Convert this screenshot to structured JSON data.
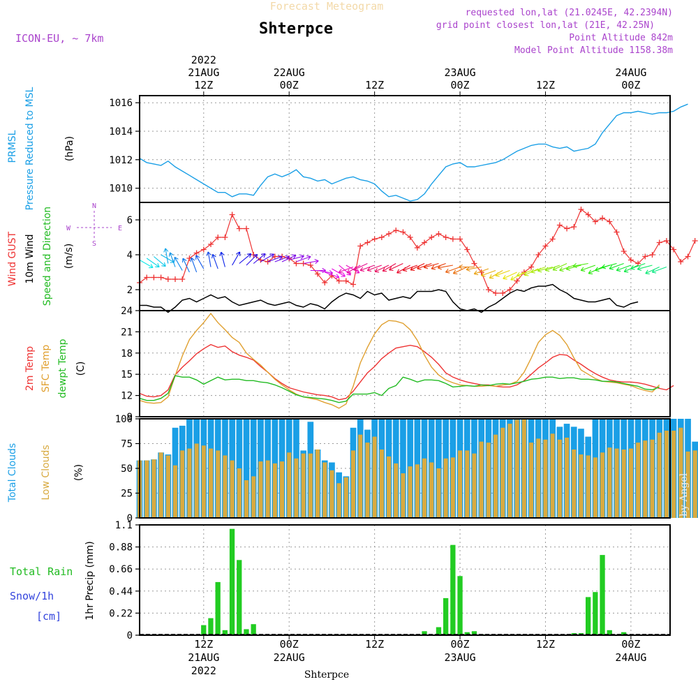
{
  "header": {
    "title_top": "Forecast Meteogram",
    "station": "Shterpce",
    "model": "ICON-EU, ~ 7km",
    "requested": "requested lon,lat (21.0245E, 42.2394N)",
    "grid_point": "grid point closest lon,lat (21E, 42.25N)",
    "point_alt": "Point Altitude 842m",
    "model_alt": "Model Point Altitude 1158.38m",
    "footer_station": "Shterpce",
    "watermark": "by Angel"
  },
  "time_axis": {
    "top": [
      {
        "h": 12,
        "l1": "2022",
        "l2": "21AUG",
        "l3": "12Z"
      },
      {
        "h": 24,
        "l2": "22AUG",
        "l3": "00Z"
      },
      {
        "h": 36,
        "l3": "12Z"
      },
      {
        "h": 48,
        "l2": "23AUG",
        "l3": "00Z"
      },
      {
        "h": 60,
        "l3": "12Z"
      },
      {
        "h": 72,
        "l2": "24AUG",
        "l3": "00Z"
      }
    ],
    "bottom": [
      {
        "h": 12,
        "l1": "12Z",
        "l2": "21AUG",
        "l3": "2022"
      },
      {
        "h": 24,
        "l1": "00Z",
        "l2": "22AUG"
      },
      {
        "h": 36,
        "l1": "12Z"
      },
      {
        "h": 48,
        "l1": "00Z",
        "l2": "23AUG"
      },
      {
        "h": 60,
        "l1": "12Z"
      },
      {
        "h": 72,
        "l1": "00Z",
        "l2": "24AUG"
      }
    ]
  },
  "panels": {
    "pressure": {
      "labels": [
        {
          "text": "PRMSL",
          "color": "#1a9fe6"
        },
        {
          "text": "Pressure Reduced to MSL",
          "color": "#1a9fe6"
        },
        {
          "text": "(hPa)",
          "color": "#000000"
        }
      ],
      "ticks": [
        "1010",
        "1012",
        "1014",
        "1016"
      ]
    },
    "wind": {
      "labels": [
        {
          "text": "Wind GUST",
          "color": "#ee3333"
        },
        {
          "text": "10m Wind",
          "color": "#000000"
        },
        {
          "text": "Speed and Direction",
          "color": "#22bb22"
        },
        {
          "text": "(m/s)",
          "color": "#000000"
        }
      ],
      "ticks": [
        "2",
        "4",
        "6"
      ],
      "compass": {
        "n": "N",
        "s": "S",
        "w": "W",
        "e": "E"
      }
    },
    "temp": {
      "labels": [
        {
          "text": "2m Temp",
          "color": "#ee3333"
        },
        {
          "text": "SFC Temp",
          "color": "#e0a030"
        },
        {
          "text": "dewpt Temp",
          "color": "#22bb22"
        },
        {
          "text": "(C)",
          "color": "#000000"
        }
      ],
      "ticks": [
        "9",
        "12",
        "15",
        "18",
        "21",
        "24"
      ]
    },
    "clouds": {
      "labels": [
        {
          "text": "Total Clouds",
          "color": "#1a9fe6"
        },
        {
          "text": "Low Clouds",
          "color": "#d8aa40"
        },
        {
          "text": "(%)",
          "color": "#000000"
        }
      ],
      "ticks": [
        "0",
        "25",
        "50",
        "75",
        "100"
      ]
    },
    "precip": {
      "labels": [
        {
          "text": "Total  Rain",
          "color": "#22bb22"
        },
        {
          "text": "Snow/1h",
          "color": "#3344dd"
        },
        {
          "text": "[cm]",
          "color": "#3344dd"
        },
        {
          "text": "1hr Precip (mm)",
          "color": "#000000"
        }
      ],
      "ticks": [
        "0",
        "0.22",
        "0.44",
        "0.66",
        "0.88",
        "1.1"
      ]
    }
  },
  "chart_data": [
    {
      "type": "line",
      "name": "pressure",
      "x_unit": "hours since 2022-08-21 00Z",
      "x_start": 3,
      "x_step": 1,
      "ylim": [
        1009,
        1016.5
      ],
      "series": [
        {
          "name": "PRMSL",
          "color": "#1a9fe6",
          "values": [
            1012.1,
            1011.8,
            1011.7,
            1011.6,
            1011.9,
            1011.5,
            1011.2,
            1010.9,
            1010.6,
            1010.3,
            1010.0,
            1009.7,
            1009.7,
            1009.4,
            1009.6,
            1009.6,
            1009.5,
            1010.2,
            1010.8,
            1011.0,
            1010.8,
            1011.0,
            1011.3,
            1010.8,
            1010.7,
            1010.5,
            1010.6,
            1010.3,
            1010.5,
            1010.7,
            1010.8,
            1010.6,
            1010.5,
            1010.3,
            1009.8,
            1009.4,
            1009.5,
            1009.3,
            1009.1,
            1009.2,
            1009.6,
            1010.3,
            1010.9,
            1011.5,
            1011.7,
            1011.8,
            1011.5,
            1011.5,
            1011.6,
            1011.7,
            1011.8,
            1012.0,
            1012.3,
            1012.6,
            1012.8,
            1013.0,
            1013.1,
            1013.1,
            1012.9,
            1012.8,
            1012.9,
            1012.6,
            1012.7,
            1012.8,
            1013.1,
            1013.9,
            1014.5,
            1015.1,
            1015.3,
            1015.3,
            1015.4,
            1015.3,
            1015.2,
            1015.3,
            1015.3,
            1015.4,
            1015.7,
            1015.9
          ]
        }
      ]
    },
    {
      "type": "line",
      "name": "wind",
      "x_unit": "hours since 2022-08-21 00Z",
      "x_start": 3,
      "x_step": 1,
      "ylim": [
        0.8,
        7
      ],
      "series": [
        {
          "name": "Wind GUST",
          "color": "#ee3333",
          "values": [
            2.4,
            2.7,
            2.7,
            2.7,
            2.6,
            2.6,
            2.6,
            3.8,
            4.1,
            4.3,
            4.6,
            5.0,
            5.0,
            6.3,
            5.5,
            5.5,
            4.0,
            3.7,
            3.6,
            3.9,
            3.9,
            3.8,
            3.5,
            3.5,
            3.4,
            2.9,
            2.4,
            2.8,
            2.5,
            2.5,
            2.3,
            4.5,
            4.7,
            4.9,
            5.0,
            5.2,
            5.4,
            5.3,
            5.0,
            4.4,
            4.7,
            5.0,
            5.2,
            5.0,
            4.9,
            4.9,
            4.3,
            3.5,
            3.0,
            2.0,
            1.8,
            1.8,
            2.0,
            2.5,
            3.0,
            3.3,
            4.0,
            4.5,
            4.9,
            5.7,
            5.5,
            5.6,
            6.6,
            6.3,
            5.9,
            6.1,
            5.9,
            5.3,
            4.2,
            3.7,
            3.5,
            3.9,
            4.0,
            4.7,
            4.8,
            4.3,
            3.6,
            3.9,
            4.8
          ]
        },
        {
          "name": "10m Wind",
          "color": "#000000",
          "values": [
            1.1,
            1.1,
            1.0,
            1.0,
            0.7,
            1.0,
            1.4,
            1.5,
            1.3,
            1.5,
            1.7,
            1.5,
            1.6,
            1.3,
            1.1,
            1.2,
            1.3,
            1.4,
            1.2,
            1.1,
            1.2,
            1.3,
            1.1,
            1.0,
            1.2,
            1.1,
            0.9,
            1.3,
            1.6,
            1.8,
            1.7,
            1.5,
            1.9,
            1.7,
            1.8,
            1.4,
            1.5,
            1.6,
            1.5,
            1.9,
            1.9,
            1.9,
            2.0,
            1.9,
            1.3,
            0.9,
            0.8,
            0.9,
            0.7,
            1.0,
            1.2,
            1.5,
            1.8,
            2.0,
            1.9,
            2.1,
            2.2,
            2.2,
            2.3,
            2.0,
            1.8,
            1.5,
            1.4,
            1.3,
            1.3,
            1.4,
            1.5,
            1.1,
            1.0,
            1.2,
            1.3
          ]
        }
      ]
    },
    {
      "type": "line",
      "name": "temperature",
      "x_unit": "hours since 2022-08-21 00Z",
      "x_start": 3,
      "x_step": 1,
      "ylim": [
        9,
        24
      ],
      "series": [
        {
          "name": "2m Temp",
          "color": "#ee3333",
          "values": [
            12.3,
            11.9,
            11.8,
            12.0,
            12.8,
            14.9,
            16.0,
            16.9,
            17.9,
            18.6,
            19.2,
            18.8,
            19.0,
            18.2,
            17.7,
            17.4,
            17.0,
            16.1,
            15.3,
            14.4,
            13.7,
            13.1,
            12.8,
            12.5,
            12.3,
            12.1,
            12.0,
            11.8,
            11.4,
            11.6,
            12.6,
            13.9,
            15.2,
            16.1,
            17.2,
            18.0,
            18.7,
            18.9,
            19.1,
            18.9,
            18.2,
            17.4,
            16.4,
            15.2,
            14.6,
            14.2,
            13.9,
            13.7,
            13.5,
            13.5,
            13.3,
            13.2,
            13.2,
            13.5,
            14.1,
            15.0,
            15.9,
            16.6,
            17.4,
            17.8,
            17.7,
            17.0,
            16.4,
            15.7,
            15.1,
            14.6,
            14.2,
            14.0,
            13.9,
            13.9,
            13.8,
            13.6,
            13.3,
            13.0,
            12.8,
            13.4
          ]
        },
        {
          "name": "SFC Temp",
          "color": "#e0a030",
          "values": [
            11.3,
            11.0,
            10.9,
            11.0,
            11.8,
            14.8,
            17.6,
            19.9,
            21.2,
            22.3,
            23.6,
            22.3,
            21.3,
            20.2,
            19.5,
            18.0,
            17.1,
            16.3,
            15.3,
            14.3,
            13.5,
            12.8,
            12.2,
            11.8,
            11.6,
            11.4,
            11.0,
            10.7,
            10.2,
            10.8,
            13.3,
            16.6,
            18.8,
            20.7,
            22.0,
            22.6,
            22.5,
            22.2,
            21.3,
            19.8,
            17.7,
            16.0,
            14.9,
            14.2,
            13.8,
            13.5,
            13.4,
            13.3,
            13.3,
            13.4,
            13.3,
            13.5,
            13.6,
            14.0,
            15.3,
            17.3,
            19.5,
            20.6,
            21.2,
            20.5,
            19.2,
            17.3,
            15.6,
            15.0,
            14.4,
            14.0,
            13.9,
            13.8,
            13.6,
            13.4,
            13.0,
            12.7,
            12.5,
            13.5
          ]
        },
        {
          "name": "dewpt Temp",
          "color": "#22bb22",
          "values": [
            11.6,
            11.3,
            11.3,
            11.6,
            12.3,
            14.8,
            14.6,
            14.6,
            14.2,
            13.6,
            14.1,
            14.6,
            14.2,
            14.3,
            14.3,
            14.1,
            14.1,
            13.9,
            13.8,
            13.5,
            13.1,
            12.6,
            12.1,
            11.8,
            11.7,
            11.6,
            11.5,
            11.3,
            11.0,
            11.2,
            12.2,
            12.2,
            12.2,
            12.4,
            12.0,
            13.0,
            13.4,
            14.6,
            14.3,
            13.9,
            14.2,
            14.2,
            14.1,
            13.7,
            13.2,
            13.3,
            13.4,
            13.3,
            13.5,
            13.4,
            13.6,
            13.7,
            13.6,
            13.8,
            14.0,
            14.3,
            14.4,
            14.6,
            14.6,
            14.4,
            14.5,
            14.5,
            14.3,
            14.3,
            14.2,
            14.0,
            14.0,
            13.9,
            13.7,
            13.5,
            13.3,
            12.9,
            12.8,
            13.2
          ]
        }
      ]
    },
    {
      "type": "bar",
      "name": "clouds",
      "x_unit": "hours since 2022-08-21 00Z",
      "x_start": 3,
      "x_step": 1,
      "ylim": [
        0,
        100
      ],
      "series": [
        {
          "name": "Total Clouds",
          "color": "#1a9fe6",
          "values": [
            58,
            58,
            59,
            66,
            64,
            91,
            93,
            100,
            100,
            100,
            100,
            100,
            100,
            100,
            100,
            100,
            100,
            100,
            100,
            100,
            100,
            100,
            100,
            68,
            97,
            69,
            58,
            56,
            46,
            42,
            91,
            100,
            89,
            100,
            100,
            100,
            100,
            100,
            100,
            100,
            100,
            100,
            100,
            100,
            100,
            100,
            100,
            100,
            100,
            100,
            100,
            100,
            100,
            100,
            100,
            100,
            100,
            100,
            100,
            92,
            95,
            92,
            90,
            82,
            100,
            100,
            100,
            100,
            100,
            100,
            100,
            100,
            100,
            100,
            100,
            100,
            100,
            100,
            77,
            78,
            88,
            95
          ]
        },
        {
          "name": "Low Clouds",
          "color": "#d8aa40",
          "values": [
            58,
            58,
            59,
            66,
            63,
            53,
            68,
            70,
            75,
            73,
            70,
            68,
            63,
            58,
            50,
            38,
            42,
            57,
            58,
            55,
            57,
            66,
            60,
            65,
            65,
            69,
            56,
            48,
            35,
            41,
            68,
            84,
            76,
            82,
            69,
            62,
            55,
            45,
            52,
            54,
            60,
            56,
            50,
            60,
            61,
            68,
            68,
            65,
            77,
            76,
            84,
            91,
            95,
            99,
            100,
            76,
            80,
            79,
            85,
            79,
            81,
            69,
            64,
            63,
            61,
            66,
            71,
            70,
            69,
            70,
            76,
            78,
            79,
            86,
            88,
            88,
            91,
            67,
            68,
            66,
            88,
            95
          ]
        }
      ]
    },
    {
      "type": "bar",
      "name": "precipitation",
      "x_unit": "hours since 2022-08-21 00Z",
      "x_start": 3,
      "x_step": 1,
      "ylim": [
        0,
        1.1
      ],
      "series": [
        {
          "name": "Total Rain",
          "color": "#22cc22",
          "values": [
            0,
            0,
            0,
            0,
            0,
            0,
            0,
            0,
            0,
            0.1,
            0.17,
            0.53,
            0.05,
            1.06,
            0.75,
            0.06,
            0.11,
            0,
            0,
            0,
            0,
            0,
            0,
            0,
            0,
            0,
            0,
            0,
            0,
            0,
            0,
            0,
            0,
            0,
            0,
            0,
            0,
            0,
            0,
            0,
            0.04,
            0,
            0.08,
            0.37,
            0.9,
            0.59,
            0.03,
            0.04,
            0.01,
            0,
            0,
            0,
            0,
            0,
            0,
            0,
            0,
            0,
            0,
            0,
            0,
            0.02,
            0.02,
            0.38,
            0.43,
            0.8,
            0.05,
            0,
            0.03,
            0,
            0,
            0,
            0,
            0,
            0,
            0,
            0,
            0,
            0,
            0,
            0,
            0,
            0
          ]
        }
      ]
    }
  ]
}
